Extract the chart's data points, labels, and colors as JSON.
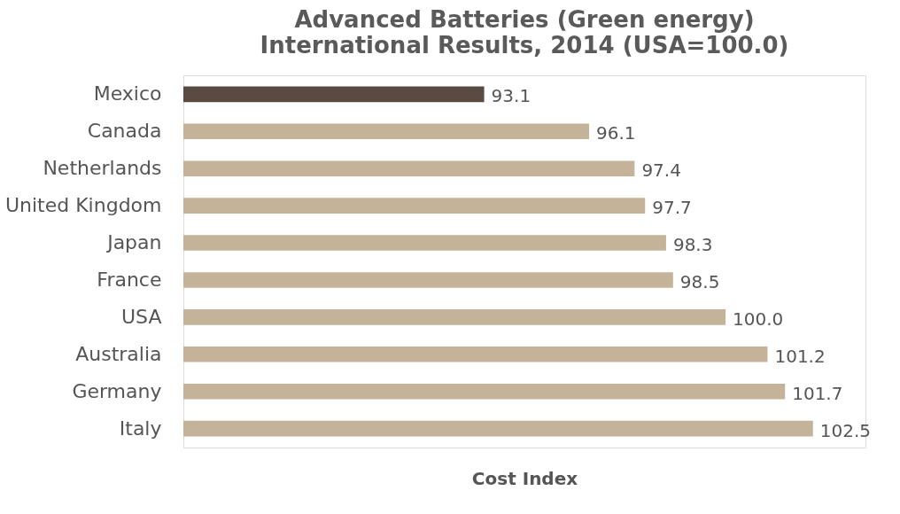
{
  "chart_data": {
    "type": "bar",
    "orientation": "horizontal",
    "title": "Advanced Batteries (Green energy)",
    "subtitle": "International Results, 2014 (USA=100.0)",
    "xlabel": "Cost Index",
    "categories": [
      "Mexico",
      "Canada",
      "Netherlands",
      "United Kingdom",
      "Japan",
      "France",
      "USA",
      "Australia",
      "Germany",
      "Italy"
    ],
    "values": [
      93.1,
      96.1,
      97.4,
      97.7,
      98.3,
      98.5,
      100.0,
      101.2,
      101.7,
      102.5
    ],
    "value_labels": [
      "93.1",
      "96.1",
      "97.4",
      "97.7",
      "98.3",
      "98.5",
      "100.0",
      "101.2",
      "101.7",
      "102.5"
    ],
    "colors": [
      "#5b4a42",
      "#c4b399",
      "#c4b399",
      "#c4b399",
      "#c4b399",
      "#c4b399",
      "#c4b399",
      "#c4b399",
      "#c4b399",
      "#c4b399"
    ],
    "xlim": [
      84.5,
      104
    ],
    "grid": false
  }
}
